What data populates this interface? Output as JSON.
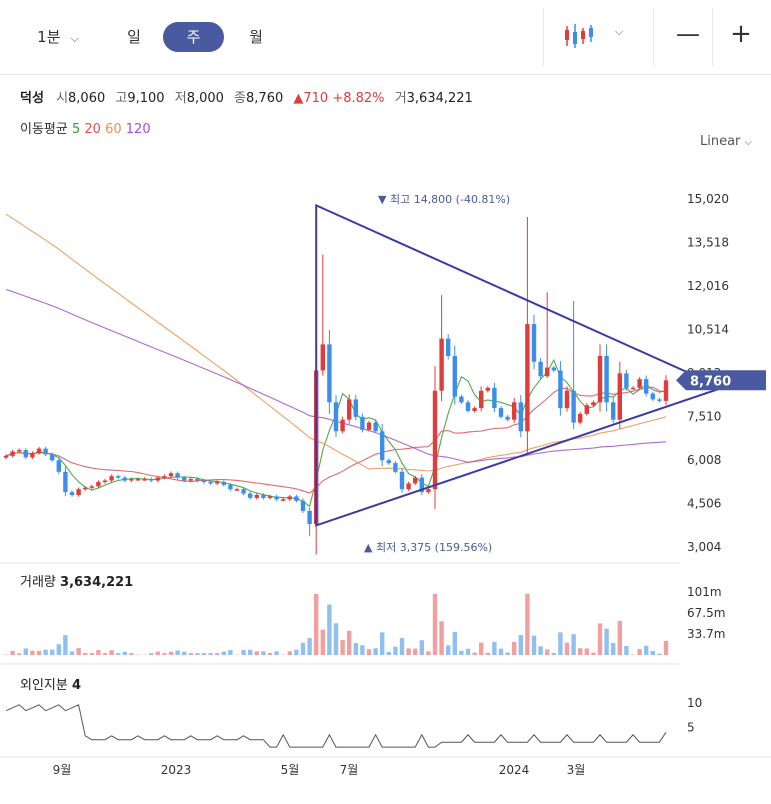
{
  "toolbar": {
    "interval_minute": "1분",
    "interval_day": "일",
    "interval_week": "주",
    "interval_month": "월",
    "selected_interval": "주",
    "chart_type_icon": "candlestick-icon",
    "zoom_out_icon": "minus-icon",
    "zoom_in_icon": "plus-icon"
  },
  "stock": {
    "name": "덕성",
    "open_label": "시",
    "open": "8,060",
    "high_label": "고",
    "high": "9,100",
    "low_label": "저",
    "low": "8,000",
    "close_label": "종",
    "close": "8,760",
    "change": "710",
    "change_pct": "+8.82%",
    "volume_label": "거",
    "volume": "3,634,221"
  },
  "moving_average": {
    "label": "이동평균",
    "periods": [
      {
        "value": "5",
        "color": "#2e9e2e"
      },
      {
        "value": "20",
        "color": "#e05050"
      },
      {
        "value": "60",
        "color": "#e8924a"
      },
      {
        "value": "120",
        "color": "#a050d0"
      }
    ]
  },
  "scale_mode": "Linear",
  "colors": {
    "up": "#e03c3c",
    "down": "#3b8fe8",
    "trendline": "#3a3aa8",
    "accent": "#4a5aa0"
  },
  "chart_data": {
    "type": "candlestick",
    "price_axis": {
      "ticks": [
        "15,020",
        "13,518",
        "12,016",
        "10,514",
        "9,012",
        "7,510",
        "6,008",
        "4,506",
        "3,004"
      ],
      "range": [
        3004,
        15020
      ]
    },
    "current_price": "8,760",
    "high_marker": "최고 14,800 (-40.81%)",
    "low_marker": "최저 3,375 (159.56%)",
    "x_labels": [
      "9월",
      "2023",
      "5월",
      "7월",
      "2024",
      "3월"
    ],
    "weekly_closes": [
      6150,
      6300,
      6350,
      6100,
      6250,
      6400,
      6200,
      6000,
      5600,
      4900,
      4800,
      5000,
      5050,
      5100,
      5250,
      5300,
      5450,
      5400,
      5300,
      5350,
      5350,
      5350,
      5300,
      5400,
      5450,
      5550,
      5400,
      5300,
      5350,
      5300,
      5250,
      5200,
      5250,
      5150,
      5000,
      5000,
      4850,
      4700,
      4800,
      4700,
      4750,
      4650,
      4650,
      4750,
      4600,
      4250,
      3800,
      9100,
      10000,
      8000,
      7000,
      7400,
      8100,
      7500,
      7050,
      7300,
      7000,
      6000,
      5900,
      5600,
      5000,
      5200,
      5400,
      4900,
      5000,
      8400,
      10200,
      9600,
      8200,
      8000,
      7700,
      7800,
      8400,
      8500,
      7800,
      7500,
      7400,
      8000,
      7000,
      10700,
      9400,
      8900,
      9200,
      9100,
      7800,
      8400,
      7300,
      7600,
      7900,
      8000,
      9600,
      8000,
      7400,
      9000,
      8500,
      8500,
      8800,
      8300,
      8100,
      8050,
      8760
    ],
    "series": [
      {
        "name": "5",
        "type": "line"
      },
      {
        "name": "20",
        "type": "line"
      },
      {
        "name": "60",
        "type": "line"
      },
      {
        "name": "120",
        "type": "line"
      }
    ]
  },
  "volume_panel": {
    "label": "거래량",
    "value": "3,634,221",
    "ticks": [
      "101m",
      "67.5m",
      "33.7m"
    ]
  },
  "foreign_panel": {
    "label": "외인지분",
    "value": "4",
    "ticks": [
      "10",
      "5"
    ]
  }
}
